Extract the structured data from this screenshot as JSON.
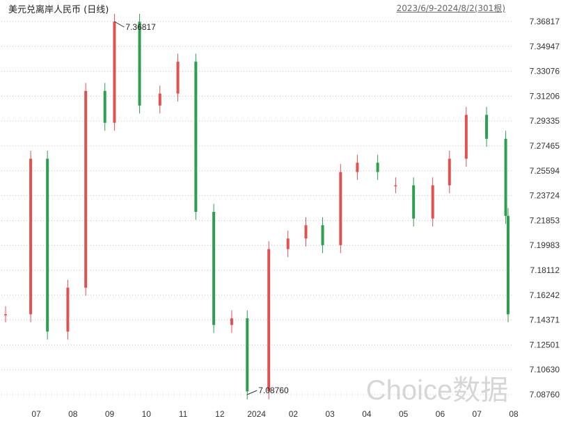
{
  "header": {
    "title": "美元兑离岸人民币 (日线)",
    "range": "2023/6/9-2024/8/2(301根)"
  },
  "watermark": "Choice数据",
  "colors": {
    "up": "#e05252",
    "down": "#2e9e4f",
    "grid": "#bfbfbf",
    "axis_text": "#333333"
  },
  "chart_data": {
    "type": "candlestick",
    "ylim": [
      7.0876,
      7.36817
    ],
    "y_ticks": [
      "7.36817",
      "7.34947",
      "7.33076",
      "7.31206",
      "7.29335",
      "7.27465",
      "7.25594",
      "7.23724",
      "7.21853",
      "7.19983",
      "7.18112",
      "7.16242",
      "7.14371",
      "7.12501",
      "7.10630",
      "7.08760"
    ],
    "x_ticks": [
      "07",
      "08",
      "09",
      "10",
      "11",
      "12",
      "2024",
      "02",
      "03",
      "04",
      "05",
      "06",
      "07",
      "08"
    ],
    "annotations": [
      {
        "label": "7.36817",
        "value": 7.36817
      },
      {
        "label": "7.08760",
        "value": 7.0876
      }
    ],
    "bars": [
      {
        "date": "2023-06-09",
        "close": 7.148,
        "trend": "up"
      },
      {
        "date": "2023-06-30",
        "close": 7.265,
        "trend": "up"
      },
      {
        "date": "2023-07-14",
        "close": 7.135,
        "trend": "down"
      },
      {
        "date": "2023-07-31",
        "close": 7.168,
        "trend": "up"
      },
      {
        "date": "2023-08-15",
        "close": 7.316,
        "trend": "up"
      },
      {
        "date": "2023-08-31",
        "close": 7.292,
        "trend": "down"
      },
      {
        "date": "2023-09-08",
        "close": 7.368,
        "trend": "up"
      },
      {
        "date": "2023-09-29",
        "close": 7.305,
        "trend": "down"
      },
      {
        "date": "2023-10-16",
        "close": 7.314,
        "trend": "up"
      },
      {
        "date": "2023-10-31",
        "close": 7.338,
        "trend": "up"
      },
      {
        "date": "2023-11-15",
        "close": 7.225,
        "trend": "down"
      },
      {
        "date": "2023-11-30",
        "close": 7.14,
        "trend": "down"
      },
      {
        "date": "2023-12-15",
        "close": 7.145,
        "trend": "up"
      },
      {
        "date": "2023-12-28",
        "close": 7.09,
        "trend": "down"
      },
      {
        "date": "2024-01-15",
        "close": 7.197,
        "trend": "up"
      },
      {
        "date": "2024-01-31",
        "close": 7.205,
        "trend": "up"
      },
      {
        "date": "2024-02-15",
        "close": 7.215,
        "trend": "up"
      },
      {
        "date": "2024-02-29",
        "close": 7.2,
        "trend": "down"
      },
      {
        "date": "2024-03-15",
        "close": 7.255,
        "trend": "up"
      },
      {
        "date": "2024-03-29",
        "close": 7.262,
        "trend": "up"
      },
      {
        "date": "2024-04-15",
        "close": 7.255,
        "trend": "down"
      },
      {
        "date": "2024-04-30",
        "close": 7.245,
        "trend": "up"
      },
      {
        "date": "2024-05-15",
        "close": 7.22,
        "trend": "down"
      },
      {
        "date": "2024-05-31",
        "close": 7.245,
        "trend": "up"
      },
      {
        "date": "2024-06-14",
        "close": 7.265,
        "trend": "up"
      },
      {
        "date": "2024-06-28",
        "close": 7.298,
        "trend": "up"
      },
      {
        "date": "2024-07-15",
        "close": 7.28,
        "trend": "down"
      },
      {
        "date": "2024-07-31",
        "close": 7.222,
        "trend": "down"
      },
      {
        "date": "2024-08-02",
        "close": 7.148,
        "trend": "down"
      }
    ]
  }
}
